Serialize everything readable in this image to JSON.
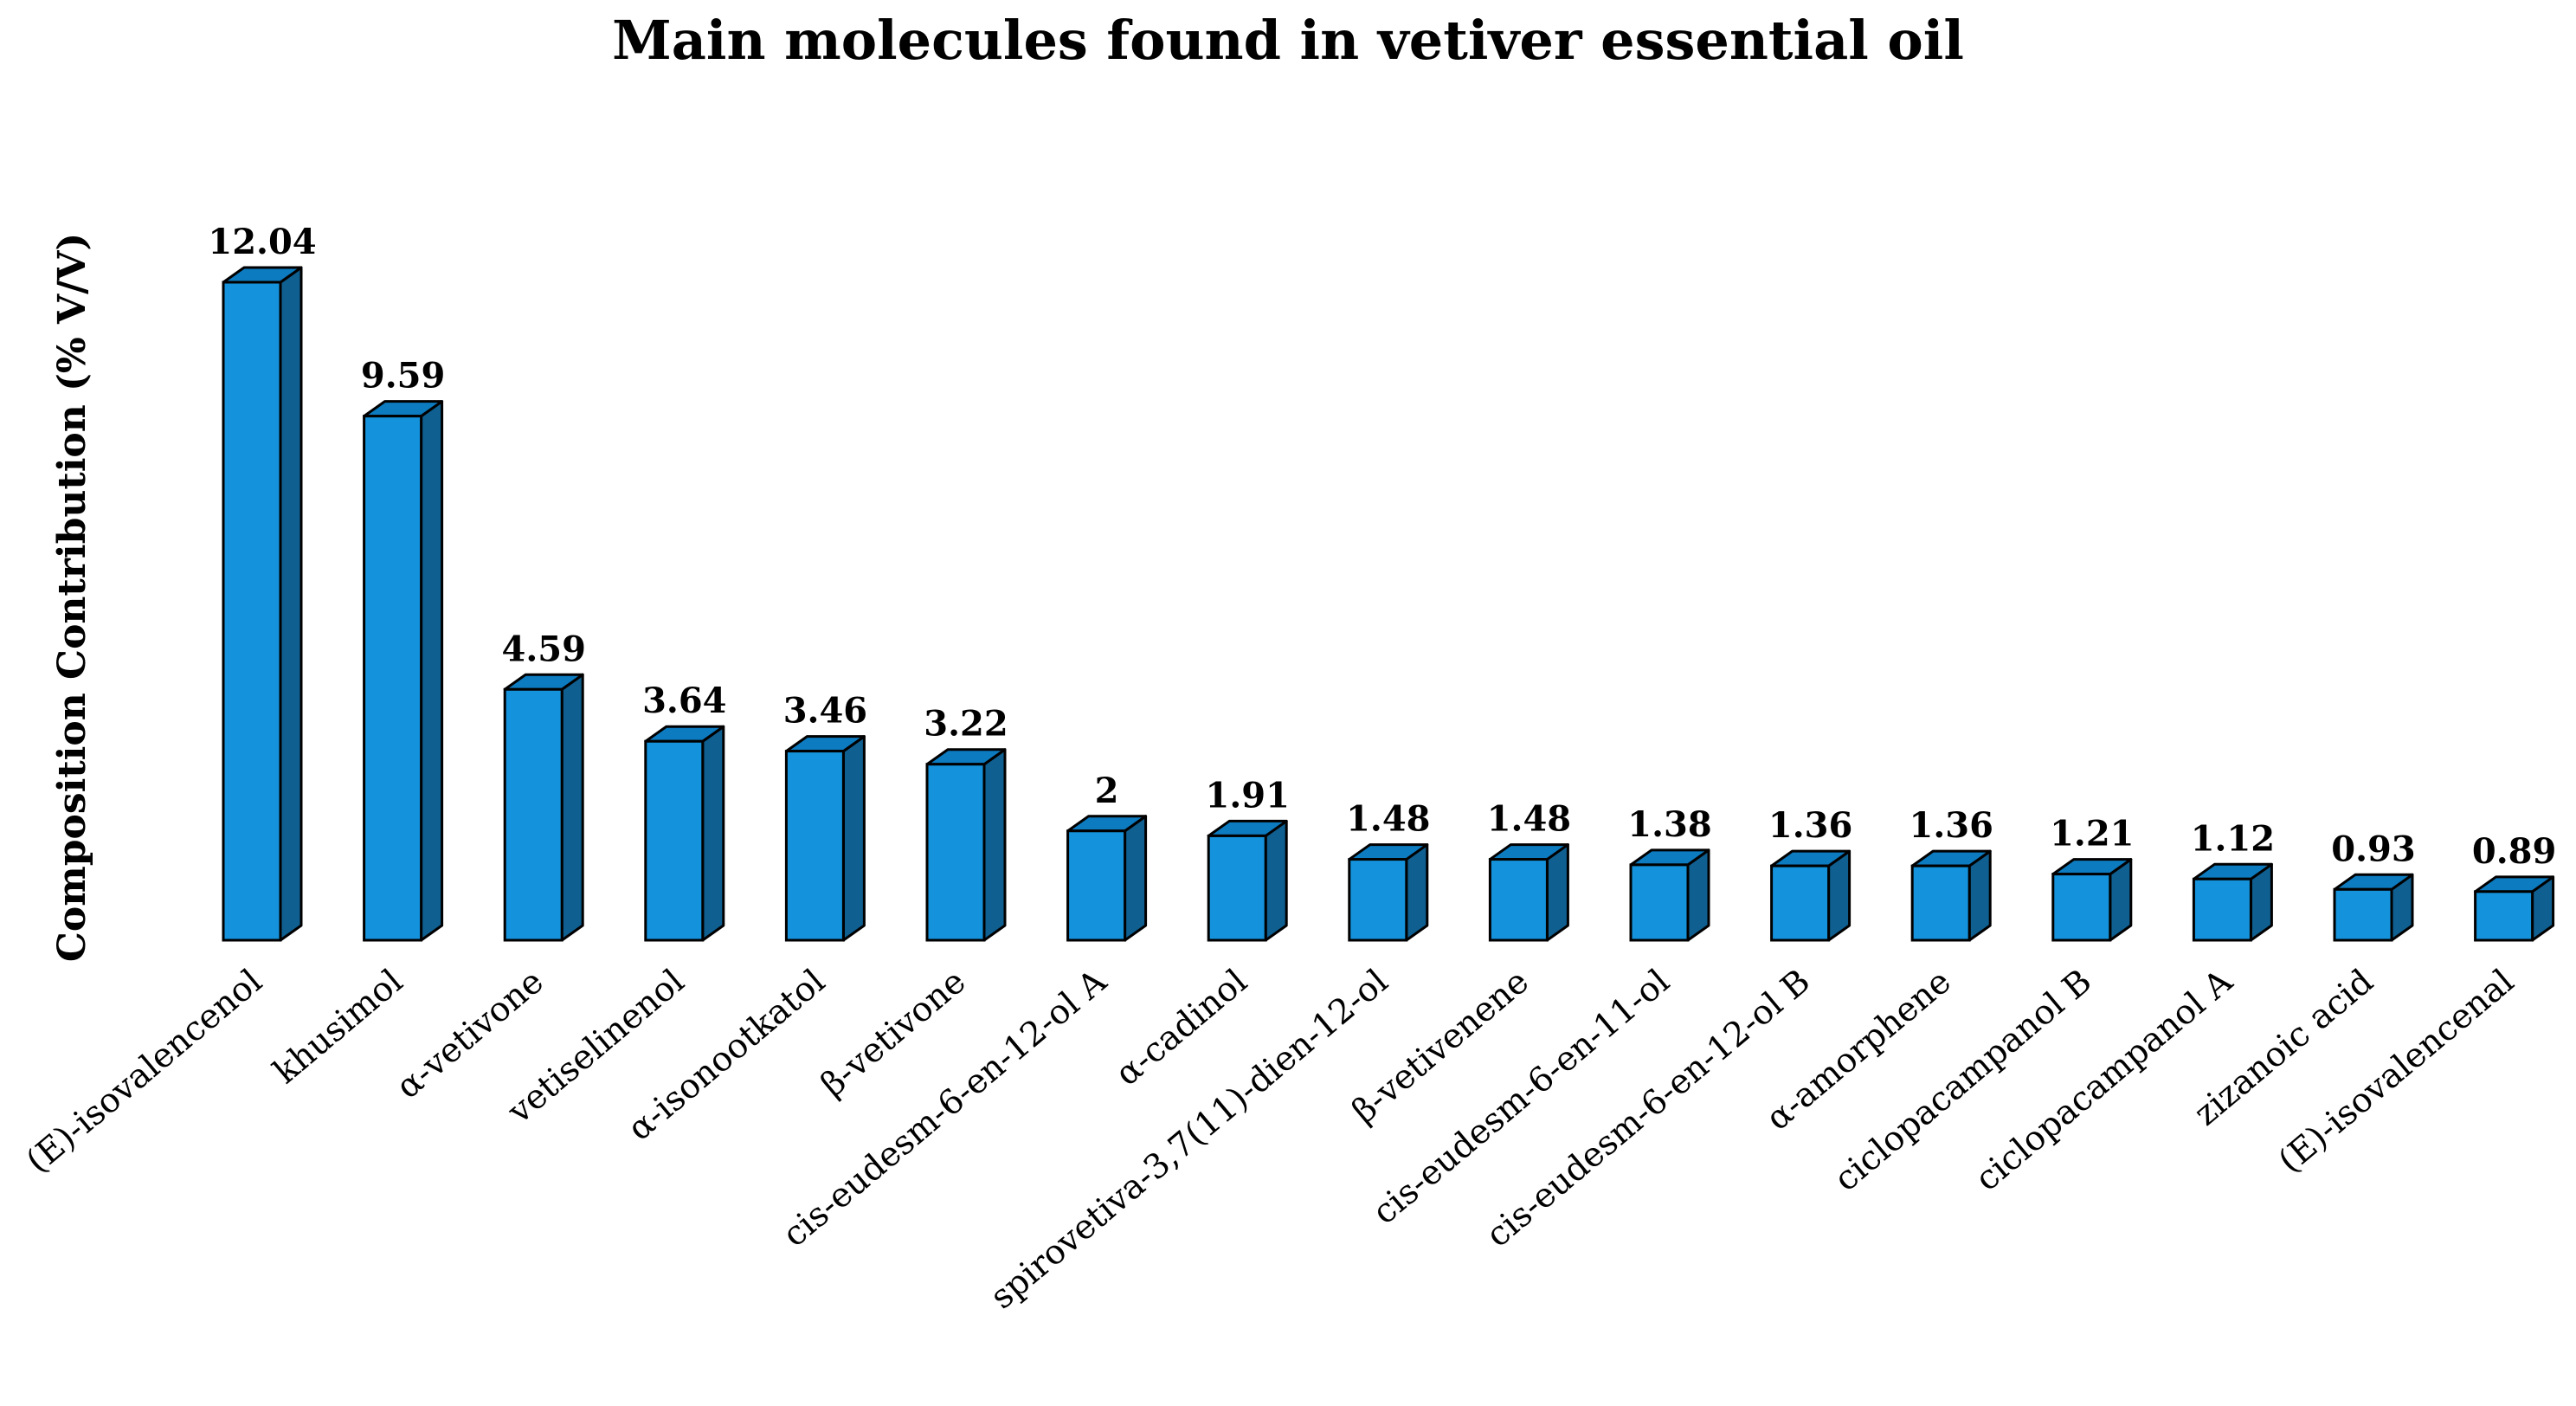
{
  "chart_data": {
    "type": "bar",
    "title": "Main molecules found in vetiver essential oil",
    "xlabel": "",
    "ylabel": "Composition Contribution  (% V/V)",
    "ylim": [
      0,
      12.04
    ],
    "grid": false,
    "legend": "none",
    "categories": [
      "(E)-isovalencenol",
      "khusimol",
      "α-vetivone",
      "vetiselinenol",
      "α-isonootkatol",
      "β-vetivone",
      "cis-eudesm-6-en-12-ol A",
      "α-cadinol",
      "spirovetiva-3,7(11)-dien-12-ol",
      "β-vetivenene",
      "cis-eudesm-6-en-11-ol",
      "cis-eudesm-6-en-12-ol B",
      "α-amorphene",
      "ciclopacampanol B",
      "ciclopacampanol A",
      "zizanoic acid",
      "(E)-isovalencenal"
    ],
    "values": [
      12.04,
      9.59,
      4.59,
      3.64,
      3.46,
      3.22,
      2,
      1.91,
      1.48,
      1.48,
      1.38,
      1.36,
      1.36,
      1.21,
      1.12,
      0.93,
      0.89
    ],
    "value_labels": [
      "12.04",
      "9.59",
      "4.59",
      "3.64",
      "3.46",
      "3.22",
      "2",
      "1.91",
      "1.48",
      "1.48",
      "1.38",
      "1.36",
      "1.36",
      "1.21",
      "1.12",
      "0.93",
      "0.89"
    ],
    "colors": {
      "front": "#1493dc",
      "side": "#0f5f90",
      "top": "#0d7bc0",
      "outline": "#000000"
    }
  }
}
